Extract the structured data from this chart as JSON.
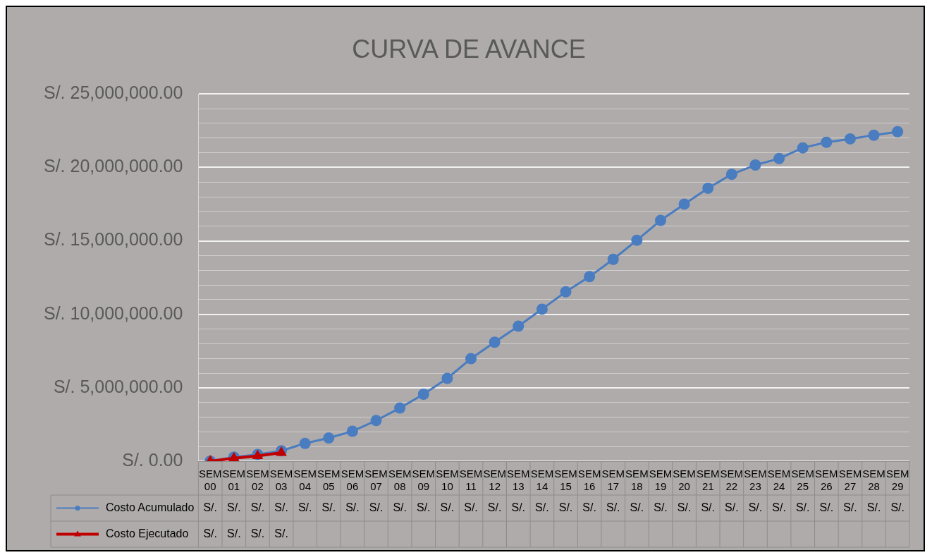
{
  "chart_data": {
    "type": "line",
    "title": "CURVA DE AVANCE",
    "categories": [
      "SEM 00",
      "SEM 01",
      "SEM 02",
      "SEM 03",
      "SEM 04",
      "SEM 05",
      "SEM 06",
      "SEM 07",
      "SEM 08",
      "SEM 09",
      "SEM 10",
      "SEM 11",
      "SEM 12",
      "SEM 13",
      "SEM 14",
      "SEM 15",
      "SEM 16",
      "SEM 17",
      "SEM 18",
      "SEM 19",
      "SEM 20",
      "SEM 21",
      "SEM 22",
      "SEM 23",
      "SEM 24",
      "SEM 25",
      "SEM 26",
      "SEM 27",
      "SEM 28",
      "SEM 29"
    ],
    "series": [
      {
        "name": "Costo Acumulado",
        "color": "#4a7cc0",
        "marker": "circle",
        "values": [
          0,
          280000,
          460000,
          710000,
          1210000,
          1580000,
          2040000,
          2770000,
          3620000,
          4560000,
          5640000,
          6980000,
          8100000,
          9190000,
          10350000,
          11530000,
          12560000,
          13740000,
          15040000,
          16390000,
          17500000,
          18580000,
          19530000,
          20160000,
          20600000,
          21330000,
          21710000,
          21940000,
          22190000,
          22430000
        ],
        "value_labels": [
          "S/.",
          "S/.",
          "S/.",
          "S/.",
          "S/.",
          "S/.",
          "S/.",
          "S/.",
          "S/.",
          "S/.",
          "S/.",
          "S/.",
          "S/.",
          "S/.",
          "S/.",
          "S/.",
          "S/.",
          "S/.",
          "S/.",
          "S/.",
          "S/.",
          "S/.",
          "S/.",
          "S/.",
          "S/.",
          "S/.",
          "S/.",
          "S/.",
          "S/.",
          "S/."
        ]
      },
      {
        "name": "Costo Ejecutado",
        "color": "#c00000",
        "marker": "triangle",
        "values": [
          0,
          200000,
          360000,
          580000,
          null,
          null,
          null,
          null,
          null,
          null,
          null,
          null,
          null,
          null,
          null,
          null,
          null,
          null,
          null,
          null,
          null,
          null,
          null,
          null,
          null,
          null,
          null,
          null,
          null,
          null
        ],
        "value_labels": [
          "S/.",
          "S/.",
          "S/.",
          "S/.",
          null,
          null,
          null,
          null,
          null,
          null,
          null,
          null,
          null,
          null,
          null,
          null,
          null,
          null,
          null,
          null,
          null,
          null,
          null,
          null,
          null,
          null,
          null,
          null,
          null,
          null
        ]
      }
    ],
    "ylim": [
      0,
      25000000
    ],
    "yticks": [
      {
        "value": 0,
        "label": "S/. 0.00"
      },
      {
        "value": 1000000,
        "label": null
      },
      {
        "value": 2000000,
        "label": null
      },
      {
        "value": 3000000,
        "label": null
      },
      {
        "value": 4000000,
        "label": null
      },
      {
        "value": 5000000,
        "label": "S/. 5,000,000.00"
      },
      {
        "value": 6000000,
        "label": null
      },
      {
        "value": 7000000,
        "label": null
      },
      {
        "value": 8000000,
        "label": null
      },
      {
        "value": 9000000,
        "label": null
      },
      {
        "value": 10000000,
        "label": "S/. 10,000,000.00"
      },
      {
        "value": 11000000,
        "label": null
      },
      {
        "value": 12000000,
        "label": null
      },
      {
        "value": 13000000,
        "label": null
      },
      {
        "value": 14000000,
        "label": null
      },
      {
        "value": 15000000,
        "label": "S/. 15,000,000.00"
      },
      {
        "value": 16000000,
        "label": null
      },
      {
        "value": 17000000,
        "label": null
      },
      {
        "value": 18000000,
        "label": null
      },
      {
        "value": 19000000,
        "label": null
      },
      {
        "value": 20000000,
        "label": "S/. 20,000,000.00"
      },
      {
        "value": 21000000,
        "label": null
      },
      {
        "value": 22000000,
        "label": null
      },
      {
        "value": 23000000,
        "label": null
      },
      {
        "value": 24000000,
        "label": null
      },
      {
        "value": 25000000,
        "label": "S/. 25,000,000.00"
      }
    ],
    "grid": "y",
    "legend": "bottom",
    "line_style": "solid"
  }
}
